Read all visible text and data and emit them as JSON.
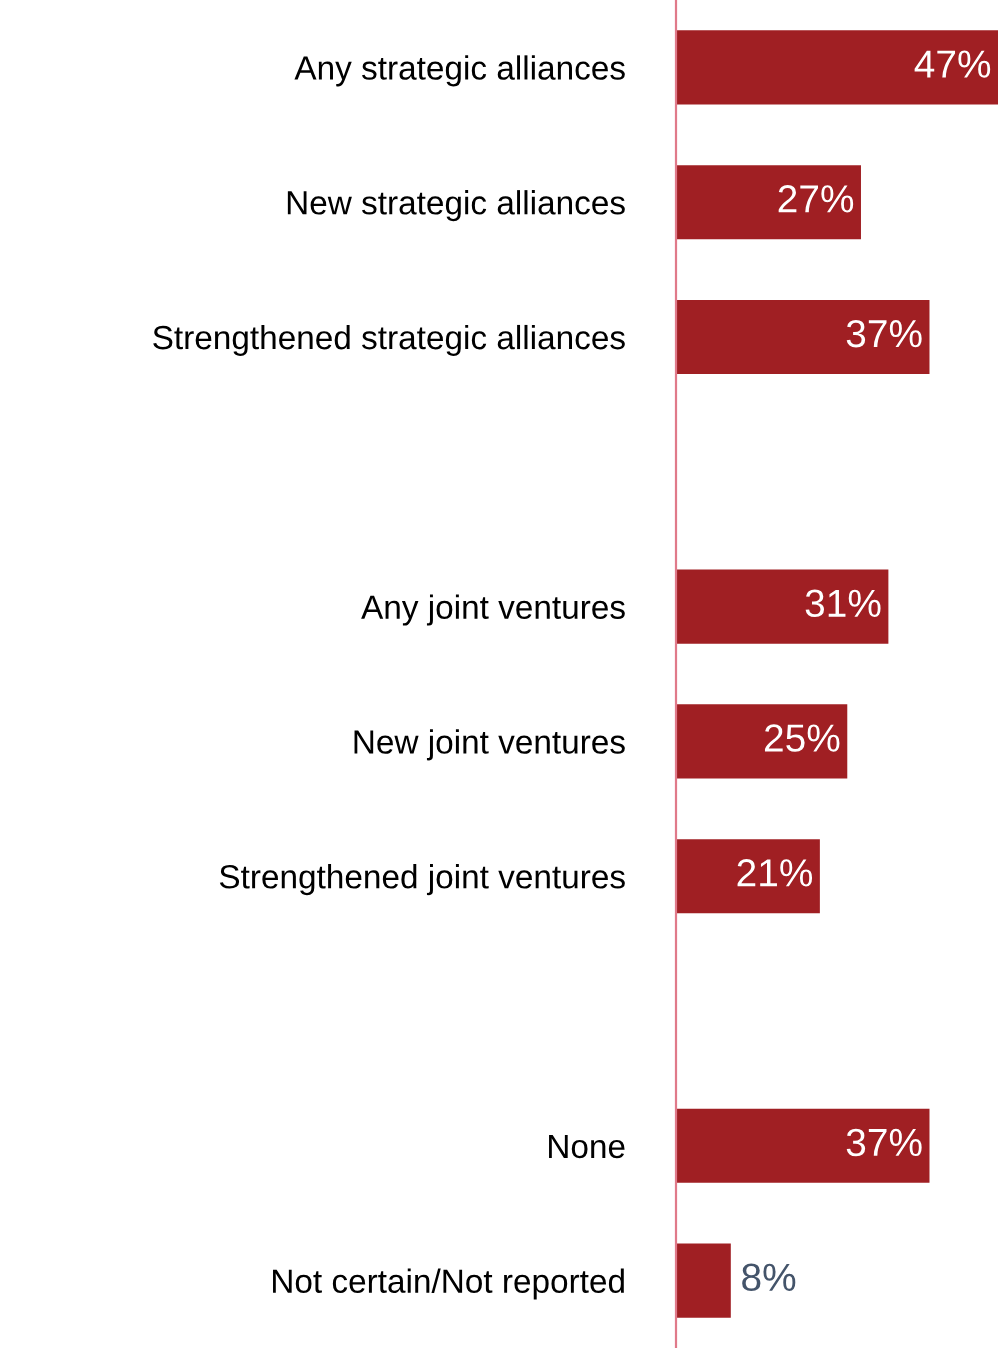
{
  "chart_data": {
    "type": "bar",
    "orientation": "horizontal",
    "categories": [
      "Any strategic alliances",
      "New strategic alliances",
      "Strengthened strategic alliances",
      null,
      "Any joint ventures",
      "New joint ventures",
      "Strengthened joint ventures",
      null,
      "None",
      "Not certain/Not reported"
    ],
    "values": [
      47,
      27,
      37,
      null,
      31,
      25,
      21,
      null,
      37,
      8
    ],
    "value_labels": [
      "47%",
      "27%",
      "37%",
      null,
      "31%",
      "25%",
      "21%",
      null,
      "37%",
      "8%"
    ],
    "color": "#a01f23",
    "grid": false,
    "legend": false
  }
}
